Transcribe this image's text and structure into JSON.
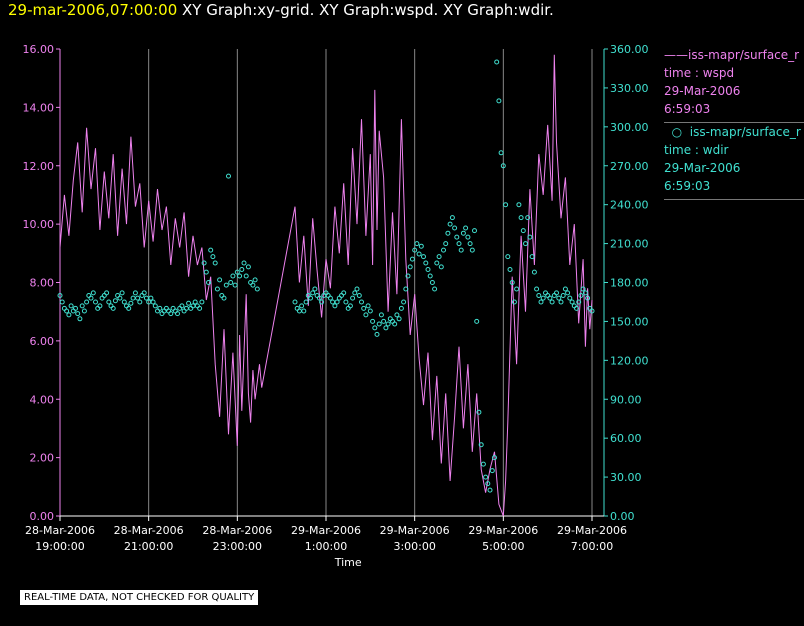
{
  "header": {
    "timestamp": "29-mar-2006,07:00:00",
    "graphs": "XY Graph:xy-grid.  XY Graph:wspd.  XY Graph:wdir."
  },
  "legend": {
    "series1": {
      "name": "iss-mapr/surface_r",
      "field": "time : wspd",
      "date": "29-Mar-2006",
      "time": "6:59:03"
    },
    "series2": {
      "name": "iss-mapr/surface_r",
      "field": "time : wdir",
      "date": "29-Mar-2006",
      "time": "6:59:03"
    }
  },
  "disclaimer": "REAL-TIME DATA, NOT CHECKED FOR QUALITY",
  "colors": {
    "wspd": "#ee82ee",
    "wdir": "#40e0d0",
    "grid": "#888888",
    "background": "#000000"
  },
  "chart_data": {
    "type": "line",
    "xlabel": "Time",
    "x_ticks": [
      {
        "hour": 19,
        "date": "28-Mar-2006",
        "time": "19:00:00"
      },
      {
        "hour": 21,
        "date": "28-Mar-2006",
        "time": "21:00:00"
      },
      {
        "hour": 23,
        "date": "28-Mar-2006",
        "time": "23:00:00"
      },
      {
        "hour": 25,
        "date": "29-Mar-2006",
        "time": "1:00:00"
      },
      {
        "hour": 27,
        "date": "29-Mar-2006",
        "time": "3:00:00"
      },
      {
        "hour": 29,
        "date": "29-Mar-2006",
        "time": "5:00:00"
      },
      {
        "hour": 31,
        "date": "29-Mar-2006",
        "time": "7:00:00"
      }
    ],
    "xlim": [
      19,
      31
    ],
    "grid_hours": [
      19,
      21,
      23,
      25,
      27,
      29,
      31
    ],
    "y_left": {
      "ylim": [
        0,
        16
      ],
      "ticks": [
        "0.00",
        "2.00",
        "4.00",
        "6.00",
        "8.00",
        "10.00",
        "12.00",
        "14.00",
        "16.00"
      ]
    },
    "y_right": {
      "ylim": [
        0,
        360
      ],
      "ticks": [
        "0.00",
        "30.00",
        "60.00",
        "90.00",
        "120.00",
        "150.00",
        "180.00",
        "210.00",
        "240.00",
        "270.00",
        "300.00",
        "330.00",
        "360.00"
      ]
    },
    "wspd_line": [
      [
        19.0,
        9.2
      ],
      [
        19.1,
        11.0
      ],
      [
        19.2,
        9.6
      ],
      [
        19.3,
        11.5
      ],
      [
        19.4,
        12.8
      ],
      [
        19.5,
        10.4
      ],
      [
        19.6,
        13.3
      ],
      [
        19.7,
        11.2
      ],
      [
        19.8,
        12.6
      ],
      [
        19.9,
        9.8
      ],
      [
        20.0,
        11.8
      ],
      [
        20.1,
        10.2
      ],
      [
        20.2,
        12.4
      ],
      [
        20.3,
        9.6
      ],
      [
        20.4,
        11.9
      ],
      [
        20.5,
        10.0
      ],
      [
        20.6,
        13.0
      ],
      [
        20.7,
        10.6
      ],
      [
        20.8,
        11.4
      ],
      [
        20.9,
        9.2
      ],
      [
        21.0,
        10.8
      ],
      [
        21.1,
        9.4
      ],
      [
        21.2,
        11.2
      ],
      [
        21.3,
        9.8
      ],
      [
        21.4,
        10.6
      ],
      [
        21.5,
        8.6
      ],
      [
        21.6,
        10.2
      ],
      [
        21.7,
        9.2
      ],
      [
        21.8,
        10.4
      ],
      [
        21.9,
        8.2
      ],
      [
        22.0,
        9.6
      ],
      [
        22.1,
        8.6
      ],
      [
        22.2,
        9.2
      ],
      [
        22.3,
        7.4
      ],
      [
        22.4,
        8.2
      ],
      [
        22.5,
        5.2
      ],
      [
        22.6,
        3.4
      ],
      [
        22.7,
        6.4
      ],
      [
        22.8,
        2.8
      ],
      [
        22.9,
        5.6
      ],
      [
        23.0,
        2.4
      ],
      [
        23.05,
        6.2
      ],
      [
        23.1,
        3.6
      ],
      [
        23.2,
        7.6
      ],
      [
        23.25,
        4.2
      ],
      [
        23.3,
        3.2
      ],
      [
        23.35,
        5.0
      ],
      [
        23.4,
        4.0
      ],
      [
        23.5,
        5.2
      ],
      [
        23.55,
        4.4
      ],
      [
        24.3,
        10.6
      ],
      [
        24.4,
        8.0
      ],
      [
        24.5,
        9.6
      ],
      [
        24.6,
        7.2
      ],
      [
        24.7,
        10.2
      ],
      [
        24.8,
        8.4
      ],
      [
        24.9,
        6.8
      ],
      [
        25.0,
        8.8
      ],
      [
        25.1,
        7.8
      ],
      [
        25.2,
        10.6
      ],
      [
        25.3,
        9.0
      ],
      [
        25.4,
        11.4
      ],
      [
        25.5,
        8.6
      ],
      [
        25.6,
        12.6
      ],
      [
        25.7,
        10.0
      ],
      [
        25.8,
        13.6
      ],
      [
        25.9,
        9.6
      ],
      [
        26.0,
        12.4
      ],
      [
        26.05,
        8.6
      ],
      [
        26.1,
        14.6
      ],
      [
        26.15,
        9.8
      ],
      [
        26.2,
        13.2
      ],
      [
        26.3,
        11.6
      ],
      [
        26.4,
        7.0
      ],
      [
        26.5,
        10.4
      ],
      [
        26.6,
        7.6
      ],
      [
        26.7,
        13.6
      ],
      [
        26.8,
        8.8
      ],
      [
        26.9,
        6.2
      ],
      [
        27.0,
        7.6
      ],
      [
        27.1,
        5.4
      ],
      [
        27.2,
        3.8
      ],
      [
        27.3,
        5.6
      ],
      [
        27.4,
        2.6
      ],
      [
        27.5,
        4.8
      ],
      [
        27.6,
        1.8
      ],
      [
        27.7,
        4.2
      ],
      [
        27.8,
        1.2
      ],
      [
        27.9,
        3.4
      ],
      [
        28.0,
        5.8
      ],
      [
        28.1,
        3.0
      ],
      [
        28.2,
        5.2
      ],
      [
        28.3,
        2.2
      ],
      [
        28.4,
        4.2
      ],
      [
        28.5,
        1.6
      ],
      [
        28.6,
        0.8
      ],
      [
        28.7,
        1.6
      ],
      [
        28.8,
        2.2
      ],
      [
        28.9,
        0.4
      ],
      [
        29.0,
        0.0
      ],
      [
        29.05,
        1.2
      ],
      [
        29.1,
        3.2
      ],
      [
        29.2,
        8.2
      ],
      [
        29.3,
        5.2
      ],
      [
        29.4,
        9.6
      ],
      [
        29.5,
        7.0
      ],
      [
        29.6,
        11.2
      ],
      [
        29.7,
        8.6
      ],
      [
        29.8,
        12.4
      ],
      [
        29.9,
        11.0
      ],
      [
        30.0,
        13.4
      ],
      [
        30.1,
        10.8
      ],
      [
        30.15,
        15.8
      ],
      [
        30.2,
        12.8
      ],
      [
        30.3,
        10.2
      ],
      [
        30.4,
        11.6
      ],
      [
        30.5,
        8.6
      ],
      [
        30.6,
        10.0
      ],
      [
        30.7,
        6.6
      ],
      [
        30.8,
        8.8
      ],
      [
        30.85,
        5.8
      ],
      [
        30.9,
        7.8
      ],
      [
        30.95,
        6.4
      ],
      [
        31.0,
        7.4
      ]
    ],
    "wdir_points": [
      [
        19.0,
        170
      ],
      [
        19.05,
        165
      ],
      [
        19.1,
        160
      ],
      [
        19.15,
        158
      ],
      [
        19.2,
        155
      ],
      [
        19.25,
        162
      ],
      [
        19.3,
        158
      ],
      [
        19.35,
        160
      ],
      [
        19.4,
        156
      ],
      [
        19.45,
        152
      ],
      [
        19.5,
        162
      ],
      [
        19.55,
        158
      ],
      [
        19.6,
        165
      ],
      [
        19.65,
        170
      ],
      [
        19.7,
        168
      ],
      [
        19.75,
        172
      ],
      [
        19.8,
        165
      ],
      [
        19.85,
        160
      ],
      [
        19.9,
        162
      ],
      [
        19.95,
        168
      ],
      [
        20.0,
        170
      ],
      [
        20.05,
        172
      ],
      [
        20.1,
        165
      ],
      [
        20.15,
        162
      ],
      [
        20.2,
        160
      ],
      [
        20.25,
        166
      ],
      [
        20.3,
        170
      ],
      [
        20.35,
        168
      ],
      [
        20.4,
        172
      ],
      [
        20.45,
        165
      ],
      [
        20.5,
        162
      ],
      [
        20.55,
        160
      ],
      [
        20.6,
        164
      ],
      [
        20.65,
        168
      ],
      [
        20.7,
        172
      ],
      [
        20.75,
        168
      ],
      [
        20.8,
        165
      ],
      [
        20.85,
        170
      ],
      [
        20.9,
        172
      ],
      [
        20.95,
        168
      ],
      [
        21.0,
        165
      ],
      [
        21.05,
        168
      ],
      [
        21.1,
        165
      ],
      [
        21.15,
        162
      ],
      [
        21.2,
        158
      ],
      [
        21.25,
        160
      ],
      [
        21.3,
        156
      ],
      [
        21.35,
        158
      ],
      [
        21.4,
        160
      ],
      [
        21.45,
        158
      ],
      [
        21.5,
        156
      ],
      [
        21.55,
        160
      ],
      [
        21.6,
        158
      ],
      [
        21.65,
        156
      ],
      [
        21.7,
        160
      ],
      [
        21.75,
        162
      ],
      [
        21.8,
        158
      ],
      [
        21.85,
        160
      ],
      [
        21.9,
        164
      ],
      [
        21.95,
        160
      ],
      [
        22.0,
        162
      ],
      [
        22.05,
        165
      ],
      [
        22.1,
        162
      ],
      [
        22.15,
        160
      ],
      [
        22.2,
        165
      ],
      [
        22.25,
        195
      ],
      [
        22.3,
        188
      ],
      [
        22.35,
        180
      ],
      [
        22.4,
        205
      ],
      [
        22.45,
        200
      ],
      [
        22.5,
        195
      ],
      [
        22.55,
        175
      ],
      [
        22.6,
        182
      ],
      [
        22.65,
        170
      ],
      [
        22.7,
        168
      ],
      [
        22.75,
        178
      ],
      [
        22.8,
        262
      ],
      [
        22.85,
        180
      ],
      [
        22.9,
        185
      ],
      [
        22.95,
        178
      ],
      [
        23.0,
        188
      ],
      [
        23.05,
        185
      ],
      [
        23.1,
        190
      ],
      [
        23.15,
        195
      ],
      [
        23.2,
        185
      ],
      [
        23.25,
        192
      ],
      [
        23.3,
        180
      ],
      [
        23.35,
        178
      ],
      [
        23.4,
        182
      ],
      [
        23.45,
        175
      ],
      [
        24.3,
        165
      ],
      [
        24.35,
        160
      ],
      [
        24.4,
        158
      ],
      [
        24.45,
        162
      ],
      [
        24.5,
        158
      ],
      [
        24.55,
        165
      ],
      [
        24.6,
        170
      ],
      [
        24.65,
        168
      ],
      [
        24.7,
        172
      ],
      [
        24.75,
        175
      ],
      [
        24.8,
        170
      ],
      [
        24.85,
        168
      ],
      [
        24.9,
        165
      ],
      [
        24.95,
        170
      ],
      [
        25.0,
        172
      ],
      [
        25.05,
        170
      ],
      [
        25.1,
        168
      ],
      [
        25.15,
        165
      ],
      [
        25.2,
        162
      ],
      [
        25.25,
        165
      ],
      [
        25.3,
        168
      ],
      [
        25.35,
        170
      ],
      [
        25.4,
        172
      ],
      [
        25.45,
        165
      ],
      [
        25.5,
        160
      ],
      [
        25.55,
        162
      ],
      [
        25.6,
        168
      ],
      [
        25.65,
        172
      ],
      [
        25.7,
        175
      ],
      [
        25.75,
        170
      ],
      [
        25.8,
        165
      ],
      [
        25.85,
        160
      ],
      [
        25.9,
        155
      ],
      [
        25.95,
        162
      ],
      [
        26.0,
        158
      ],
      [
        26.05,
        150
      ],
      [
        26.1,
        145
      ],
      [
        26.15,
        140
      ],
      [
        26.2,
        148
      ],
      [
        26.25,
        155
      ],
      [
        26.3,
        150
      ],
      [
        26.35,
        145
      ],
      [
        26.4,
        148
      ],
      [
        26.45,
        152
      ],
      [
        26.5,
        150
      ],
      [
        26.55,
        148
      ],
      [
        26.6,
        155
      ],
      [
        26.65,
        152
      ],
      [
        26.7,
        160
      ],
      [
        26.75,
        165
      ],
      [
        26.8,
        175
      ],
      [
        26.85,
        185
      ],
      [
        26.9,
        192
      ],
      [
        26.95,
        198
      ],
      [
        27.0,
        205
      ],
      [
        27.05,
        210
      ],
      [
        27.1,
        202
      ],
      [
        27.15,
        208
      ],
      [
        27.2,
        200
      ],
      [
        27.25,
        195
      ],
      [
        27.3,
        190
      ],
      [
        27.35,
        185
      ],
      [
        27.4,
        180
      ],
      [
        27.45,
        175
      ],
      [
        27.5,
        195
      ],
      [
        27.55,
        200
      ],
      [
        27.6,
        192
      ],
      [
        27.65,
        205
      ],
      [
        27.7,
        210
      ],
      [
        27.75,
        218
      ],
      [
        27.8,
        225
      ],
      [
        27.85,
        230
      ],
      [
        27.9,
        222
      ],
      [
        27.95,
        215
      ],
      [
        28.0,
        210
      ],
      [
        28.05,
        205
      ],
      [
        28.1,
        218
      ],
      [
        28.15,
        222
      ],
      [
        28.2,
        215
      ],
      [
        28.25,
        210
      ],
      [
        28.3,
        205
      ],
      [
        28.35,
        220
      ],
      [
        28.4,
        150
      ],
      [
        28.45,
        80
      ],
      [
        28.5,
        55
      ],
      [
        28.55,
        40
      ],
      [
        28.6,
        30
      ],
      [
        28.65,
        25
      ],
      [
        28.7,
        20
      ],
      [
        28.75,
        35
      ],
      [
        28.8,
        45
      ],
      [
        28.85,
        350
      ],
      [
        28.9,
        320
      ],
      [
        28.95,
        280
      ],
      [
        29.0,
        270
      ],
      [
        29.05,
        240
      ],
      [
        29.1,
        200
      ],
      [
        29.15,
        190
      ],
      [
        29.2,
        180
      ],
      [
        29.25,
        165
      ],
      [
        29.3,
        175
      ],
      [
        29.35,
        240
      ],
      [
        29.4,
        230
      ],
      [
        29.45,
        220
      ],
      [
        29.5,
        210
      ],
      [
        29.55,
        230
      ],
      [
        29.6,
        215
      ],
      [
        29.65,
        200
      ],
      [
        29.7,
        188
      ],
      [
        29.75,
        175
      ],
      [
        29.8,
        170
      ],
      [
        29.85,
        165
      ],
      [
        29.9,
        168
      ],
      [
        29.95,
        172
      ],
      [
        30.0,
        170
      ],
      [
        30.05,
        168
      ],
      [
        30.1,
        165
      ],
      [
        30.15,
        170
      ],
      [
        30.2,
        172
      ],
      [
        30.25,
        168
      ],
      [
        30.3,
        165
      ],
      [
        30.35,
        170
      ],
      [
        30.4,
        175
      ],
      [
        30.45,
        172
      ],
      [
        30.5,
        168
      ],
      [
        30.55,
        165
      ],
      [
        30.6,
        162
      ],
      [
        30.65,
        160
      ],
      [
        30.7,
        165
      ],
      [
        30.75,
        170
      ],
      [
        30.8,
        175
      ],
      [
        30.85,
        172
      ],
      [
        30.9,
        168
      ],
      [
        30.95,
        160
      ],
      [
        31.0,
        158
      ]
    ]
  }
}
